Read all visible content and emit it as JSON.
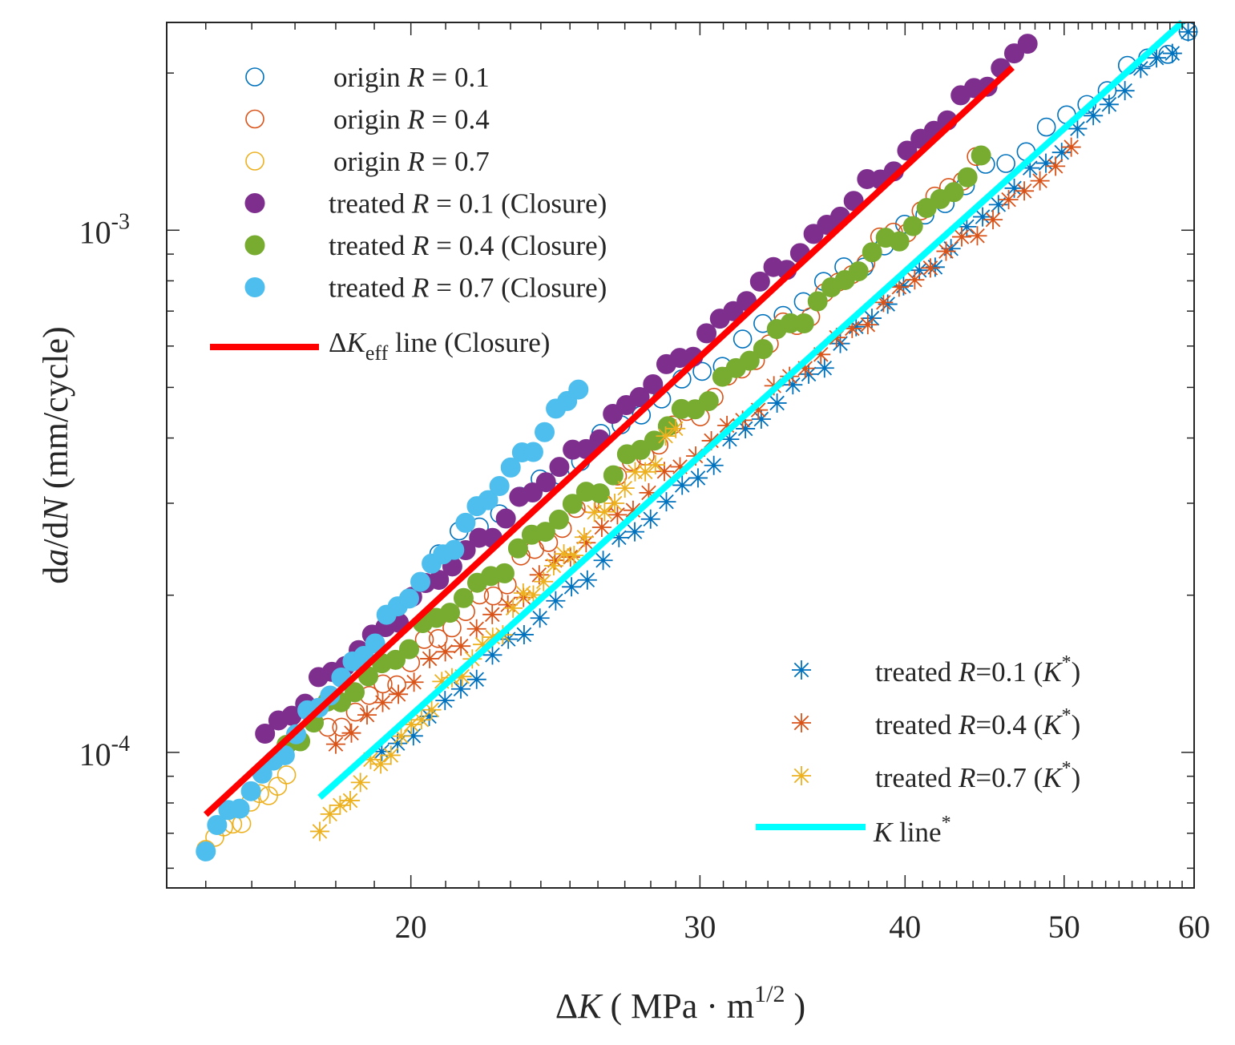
{
  "chart_data": {
    "type": "scatter",
    "scale": {
      "x": "log",
      "y": "log"
    },
    "xlim": [
      14.2,
      60
    ],
    "ylim": [
      5.5e-05,
      0.0025
    ],
    "xlabel": {
      "prefix": "Δ",
      "var": "K",
      "open": " ( MPa · m",
      "sup": "1/2",
      "close": " )"
    },
    "ylabel": {
      "p1": "d",
      "v1": "a",
      "p2": "/d",
      "v2": "N",
      "p3": " (mm/cycle)"
    },
    "x_ticks": [
      {
        "value": 20,
        "label": "20"
      },
      {
        "value": 30,
        "label": "30"
      },
      {
        "value": 40,
        "label": "40"
      },
      {
        "value": 50,
        "label": "50"
      },
      {
        "value": 60,
        "label": "60"
      }
    ],
    "y_ticks": [
      {
        "value": 0.0001,
        "base": "10",
        "exp": "-4"
      },
      {
        "value": 0.001,
        "base": "10",
        "exp": "-3"
      }
    ],
    "colors": {
      "blue": "#0072BD",
      "orange": "#D95319",
      "yellow": "#EDB120",
      "purple": "#7E2F8E",
      "green": "#77AC30",
      "lightblue": "#4DBEEE",
      "red": "#FF0000",
      "cyan": "#00FFFF"
    },
    "legend_top": [
      {
        "marker": "open-circle",
        "color": "blue",
        "pre": "origin  ",
        "var": "R",
        "post": " = 0.1"
      },
      {
        "marker": "open-circle",
        "color": "orange",
        "pre": "origin  ",
        "var": "R",
        "post": " = 0.4"
      },
      {
        "marker": "open-circle",
        "color": "yellow",
        "pre": "origin  ",
        "var": "R",
        "post": " = 0.7"
      },
      {
        "marker": "filled-circle",
        "color": "purple",
        "pre": "treated ",
        "var": "R",
        "post": " = 0.1 (Closure)"
      },
      {
        "marker": "filled-circle",
        "color": "green",
        "pre": "treated ",
        "var": "R",
        "post": " = 0.4 (Closure)"
      },
      {
        "marker": "filled-circle",
        "color": "lightblue",
        "pre": "treated ",
        "var": "R",
        "post": " = 0.7 (Closure)"
      },
      {
        "marker": "line",
        "color": "red",
        "pre": "Δ",
        "var": "K",
        "sub": "eff",
        "post": " line (Closure)"
      }
    ],
    "legend_bottom": [
      {
        "marker": "star",
        "color": "blue",
        "pre": "treated ",
        "var": "R",
        "post": "=0.1 (",
        "var2": "K",
        "sup": "*",
        "post2": ")"
      },
      {
        "marker": "star",
        "color": "orange",
        "pre": "treated ",
        "var": "R",
        "post": "=0.4 (",
        "var2": "K",
        "sup": "*",
        "post2": ")"
      },
      {
        "marker": "star",
        "color": "yellow",
        "pre": "treated ",
        "var": "R",
        "post": "=0.7 (",
        "var2": "K",
        "sup": "*",
        "post2": ")"
      },
      {
        "marker": "line",
        "color": "cyan",
        "pre": "",
        "var": "K",
        "sup": "*",
        "post": " line"
      }
    ],
    "fit_lines": [
      {
        "name": "ΔKeff line (Closure)",
        "color": "red",
        "x": [
          15,
          46.5
        ],
        "y": [
          7.6e-05,
          0.00205
        ]
      },
      {
        "name": "K* line",
        "color": "cyan",
        "x": [
          17.6,
          59
        ],
        "y": [
          8.2e-05,
          0.0025
        ]
      }
    ],
    "series": [
      {
        "name": "origin R = 0.1",
        "marker": "open-circle",
        "color": "blue",
        "x0": 20.8,
        "x1": 59.5,
        "y0": 0.00024,
        "y1": 0.0024,
        "n": 38,
        "amp": 0.05
      },
      {
        "name": "origin R = 0.4",
        "marker": "open-circle",
        "color": "orange",
        "x0": 17.8,
        "x1": 44.2,
        "y0": 0.000108,
        "y1": 0.00135,
        "n": 48,
        "amp": 0.06
      },
      {
        "name": "origin R = 0.7",
        "marker": "open-circle",
        "color": "yellow",
        "x0": 15,
        "x1": 16.8,
        "y0": 6.65e-05,
        "y1": 8.95e-05,
        "n": 10,
        "amp": 0.05
      },
      {
        "name": "treated R = 0.1 (Closure)",
        "marker": "filled-circle",
        "color": "purple",
        "x0": 16.3,
        "x1": 47.5,
        "y0": 0.000108,
        "y1": 0.00228,
        "n": 58,
        "amp": 0.05
      },
      {
        "name": "treated R = 0.4 (Closure)",
        "marker": "filled-circle",
        "color": "green",
        "x0": 16.8,
        "x1": 44.5,
        "y0": 0.000103,
        "y1": 0.00133,
        "n": 52,
        "amp": 0.05
      },
      {
        "name": "treated R = 0.7 (Closure)",
        "marker": "filled-circle",
        "color": "lightblue",
        "x0": 15,
        "x1": 25.3,
        "y0": 6.65e-05,
        "y1": 0.0005,
        "n": 34,
        "amp": 0.05
      },
      {
        "name": "treated R=0.1 (K*)",
        "marker": "star",
        "color": "blue",
        "x0": 19.2,
        "x1": 59.5,
        "y0": 9.7e-05,
        "y1": 0.0024,
        "n": 52,
        "amp": 0.04
      },
      {
        "name": "treated R=0.4 (K*)",
        "marker": "star",
        "color": "orange",
        "x0": 18,
        "x1": 50.5,
        "y0": 0.000105,
        "y1": 0.0014,
        "n": 48,
        "amp": 0.04
      },
      {
        "name": "treated R=0.7 (K*)",
        "marker": "star",
        "color": "yellow",
        "x0": 17.6,
        "x1": 29,
        "y0": 7.15e-05,
        "y1": 0.00041,
        "n": 36,
        "amp": 0.06
      }
    ]
  }
}
